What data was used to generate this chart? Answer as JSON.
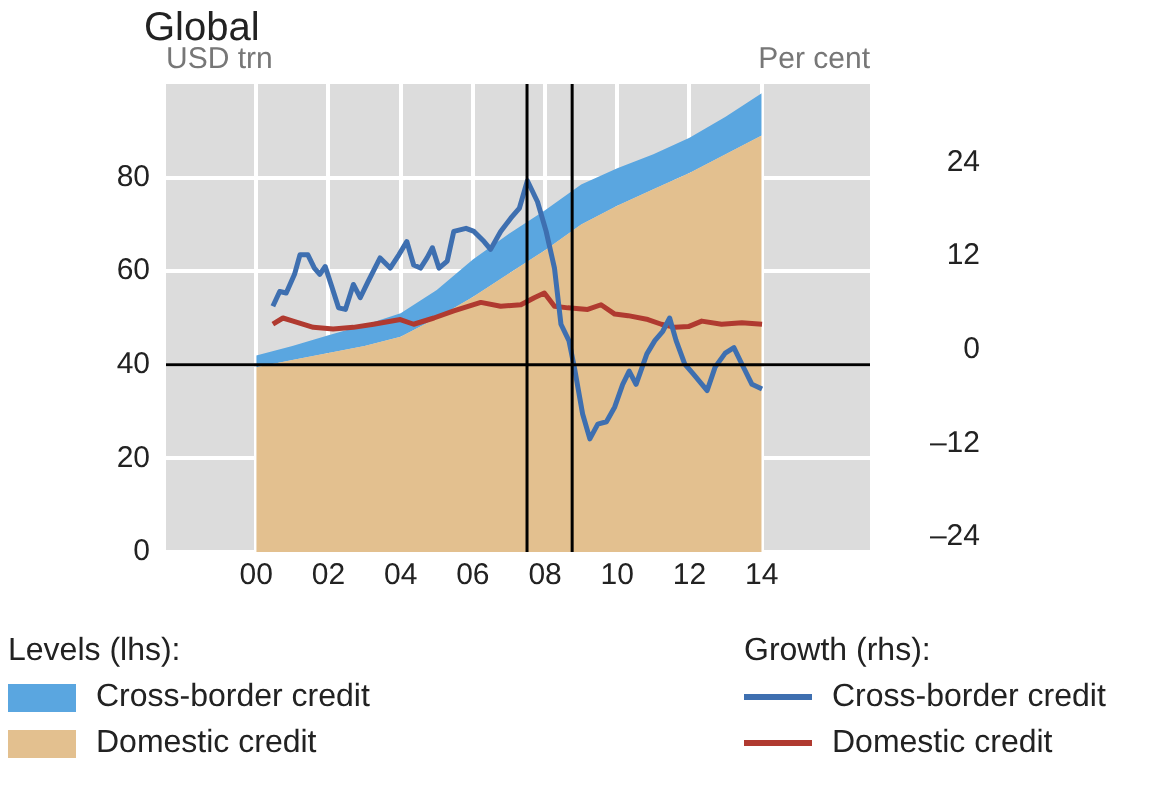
{
  "chart_data": {
    "type": "area",
    "title": "Global",
    "ylabel": "USD trn",
    "y2label": "Per cent",
    "annotations": [
      "Levels (lhs):",
      "Growth (rhs):"
    ],
    "stacked": true,
    "grid": true,
    "legend": "bottom",
    "marker": "none",
    "line_style": "solid",
    "xlim": [
      1997.5,
      2017
    ],
    "xticks": [
      {
        "value": 2000,
        "label": "00"
      },
      {
        "value": 2002,
        "label": "02"
      },
      {
        "value": 2004,
        "label": "04"
      },
      {
        "value": 2006,
        "label": "06"
      },
      {
        "value": 2008,
        "label": "08"
      },
      {
        "value": 2010,
        "label": "10"
      },
      {
        "value": 2012,
        "label": "12"
      },
      {
        "value": 2014,
        "label": "14"
      }
    ],
    "ylim": [
      0,
      100
    ],
    "yticks": [
      0,
      20,
      40,
      60,
      80
    ],
    "y2lim": [
      -24,
      36
    ],
    "y2ticks": [
      {
        "value": -24,
        "label": "–24"
      },
      {
        "value": -12,
        "label": "–12"
      },
      0,
      12,
      24
    ],
    "ref_lines": [
      {
        "axis": "x",
        "value": 2007.5,
        "color": "#000000"
      },
      {
        "axis": "x",
        "value": 2008.75,
        "color": "#000000"
      },
      {
        "axis": "y2",
        "value": 0,
        "color": "#000000"
      }
    ],
    "series": [
      {
        "name": "Domestic credit",
        "type": "area",
        "axis": "y",
        "color": "#e3c08f",
        "x": [
          2000,
          2001,
          2002,
          2003,
          2004,
          2005,
          2006,
          2007,
          2008,
          2009,
          2010,
          2011,
          2012,
          2013,
          2014
        ],
        "values": [
          39.5,
          41,
          42.5,
          44,
          46,
          50,
          54.5,
          59.5,
          64.5,
          70,
          74,
          77.5,
          81,
          85,
          89
        ]
      },
      {
        "name": "Cross-border credit",
        "type": "area",
        "axis": "y",
        "color": "#5aa6e0",
        "x": [
          2000,
          2001,
          2002,
          2003,
          2004,
          2005,
          2006,
          2007,
          2008,
          2009,
          2010,
          2011,
          2012,
          2013,
          2014
        ],
        "values": [
          2.5,
          3,
          3.8,
          4.5,
          5,
          6,
          8,
          8.5,
          8.5,
          8.5,
          8,
          7.5,
          7.5,
          8,
          9
        ]
      },
      {
        "name": "Cross-border credit",
        "type": "line",
        "axis": "y2",
        "color": "#3e6fb0",
        "x": [
          2000.46,
          2000.65,
          2000.83,
          2001.06,
          2001.21,
          2001.43,
          2001.61,
          2001.76,
          2001.91,
          2002.1,
          2002.28,
          2002.47,
          2002.69,
          2002.88,
          2003.1,
          2003.43,
          2003.71,
          2003.95,
          2004.17,
          2004.36,
          2004.55,
          2004.73,
          2004.88,
          2005.06,
          2005.29,
          2005.47,
          2005.81,
          2006.03,
          2006.31,
          2006.49,
          2006.77,
          2007.05,
          2007.29,
          2007.51,
          2007.79,
          2008.03,
          2008.26,
          2008.44,
          2008.66,
          2008.81,
          2009.04,
          2009.24,
          2009.46,
          2009.7,
          2009.93,
          2010.15,
          2010.33,
          2010.52,
          2010.82,
          2011.04,
          2011.26,
          2011.45,
          2011.63,
          2011.87,
          2012.11,
          2012.49,
          2012.71,
          2012.99,
          2013.23,
          2013.45,
          2013.73,
          2014.01
        ],
        "values": [
          7.5,
          9.4,
          9.2,
          11.6,
          14.1,
          14.1,
          12.4,
          11.6,
          12.6,
          9.9,
          7.3,
          7.1,
          10.3,
          8.6,
          10.7,
          13.7,
          12.4,
          14.1,
          15.8,
          12.8,
          12.4,
          13.7,
          15,
          12.4,
          13.3,
          17.1,
          17.5,
          17.1,
          15.8,
          14.8,
          17.1,
          18.8,
          20.1,
          23.6,
          20.9,
          17.1,
          12.4,
          5.2,
          3.1,
          -0.3,
          -6.3,
          -9.5,
          -7.6,
          -7.3,
          -5.4,
          -2.5,
          -0.8,
          -2.5,
          1.4,
          3.1,
          4.3,
          6,
          3.1,
          0.1,
          -1.2,
          -3.3,
          -0.3,
          1.5,
          2.2,
          0.1,
          -2.5,
          -3.1
        ]
      },
      {
        "name": "Domestic credit",
        "type": "line",
        "axis": "y2",
        "color": "#b03a30",
        "x": [
          2000.46,
          2000.74,
          2001.02,
          2001.58,
          2002.13,
          2002.69,
          2003.25,
          2003.99,
          2004.36,
          2004.92,
          2005.47,
          2006.22,
          2006.77,
          2007.33,
          2007.7,
          2007.98,
          2008.26,
          2008.63,
          2009.18,
          2009.55,
          2009.93,
          2010.3,
          2010.85,
          2011.22,
          2011.6,
          2011.97,
          2012.34,
          2012.89,
          2013.45,
          2014.01
        ],
        "values": [
          5.2,
          6,
          5.6,
          4.8,
          4.6,
          4.8,
          5.2,
          5.8,
          5.2,
          6,
          6.9,
          8,
          7.5,
          7.7,
          8.6,
          9.2,
          7.5,
          7.3,
          7.1,
          7.7,
          6.5,
          6.3,
          5.8,
          5.2,
          4.8,
          4.9,
          5.6,
          5.2,
          5.4,
          5.2
        ]
      }
    ]
  }
}
